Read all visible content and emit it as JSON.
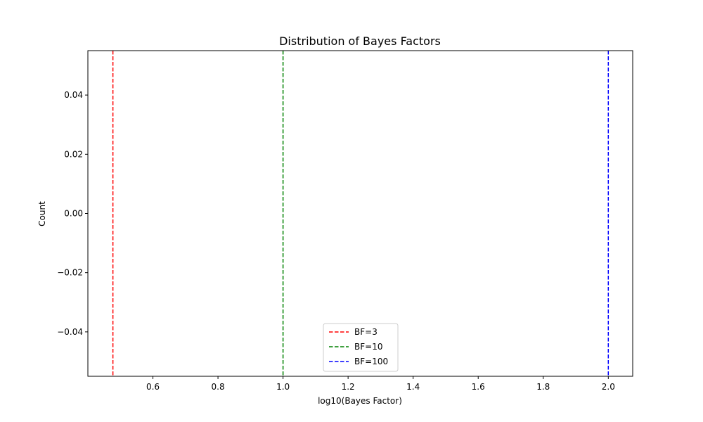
{
  "chart_data": {
    "type": "line",
    "title": "Distribution of Bayes Factors",
    "xlabel": "log10(Bayes Factor)",
    "ylabel": "Count",
    "xlim": [
      0.4,
      2.075
    ],
    "ylim": [
      -0.055,
      0.055
    ],
    "xticks": [
      0.6,
      0.8,
      1.0,
      1.2,
      1.4,
      1.6,
      1.8,
      2.0
    ],
    "xtick_labels": [
      "0.6",
      "0.8",
      "1.0",
      "1.2",
      "1.4",
      "1.6",
      "1.8",
      "2.0"
    ],
    "yticks": [
      -0.04,
      -0.02,
      0.0,
      0.02,
      0.04
    ],
    "ytick_labels": [
      "−0.04",
      "−0.02",
      "0.00",
      "0.02",
      "0.04"
    ],
    "grid": false,
    "legend_position": "lower-center",
    "series": [
      {
        "name": "BF=3",
        "x": 0.477,
        "color": "#ff0000",
        "style": "dashed vertical line"
      },
      {
        "name": "BF=10",
        "x": 1.0,
        "color": "#008000",
        "style": "dashed vertical line"
      },
      {
        "name": "BF=100",
        "x": 2.0,
        "color": "#0000ff",
        "style": "dashed vertical line"
      }
    ]
  }
}
